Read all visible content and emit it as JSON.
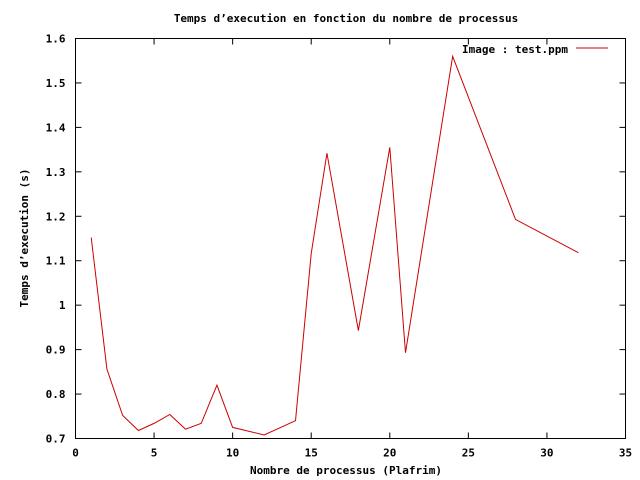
{
  "chart_data": {
    "type": "line",
    "title": "Temps d’execution en fonction du nombre de processus",
    "xlabel": "Nombre de processus (Plafrim)",
    "ylabel": "Temps d’execution (s)",
    "xlim": [
      0,
      35
    ],
    "ylim": [
      0.7,
      1.6
    ],
    "x_ticks": [
      0,
      5,
      10,
      15,
      20,
      25,
      30,
      35
    ],
    "x_tick_labels": [
      "0",
      "5",
      "10",
      "15",
      "20",
      "25",
      "30",
      "35"
    ],
    "y_ticks": [
      0.7,
      0.8,
      0.9,
      1.0,
      1.1,
      1.2,
      1.3,
      1.4,
      1.5,
      1.6
    ],
    "y_tick_labels": [
      "0.7",
      "0.8",
      "0.9",
      "1",
      "1.1",
      "1.2",
      "1.3",
      "1.4",
      "1.5",
      "1.6"
    ],
    "grid": false,
    "legend_position": "top-right",
    "series": [
      {
        "name": "Image : test.ppm",
        "color": "#cc0000",
        "x": [
          1,
          2,
          3,
          4,
          5,
          6,
          7,
          8,
          9,
          10,
          12,
          14,
          15,
          16,
          18,
          20,
          21,
          24,
          28,
          32
        ],
        "y": [
          1.152,
          0.856,
          0.752,
          0.718,
          0.734,
          0.754,
          0.721,
          0.734,
          0.82,
          0.725,
          0.708,
          0.74,
          1.116,
          1.342,
          0.943,
          1.355,
          0.893,
          1.56,
          1.193,
          1.118
        ]
      }
    ]
  }
}
